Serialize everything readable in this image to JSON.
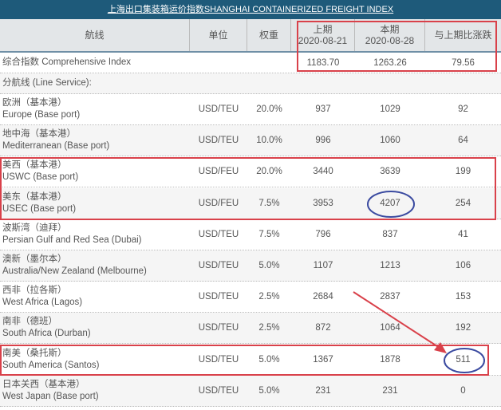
{
  "title": "上海出口集装箱运价指数SHANGHAI CONTAINERIZED FREIGHT INDEX",
  "headers": {
    "route": "航线",
    "unit": "单位",
    "weight": "权重",
    "prev_label": "上期",
    "prev_date": "2020-08-21",
    "curr_label": "本期",
    "curr_date": "2020-08-28",
    "change": "与上期比涨跌"
  },
  "comprehensive": {
    "label": "综合指数 Comprehensive Index",
    "prev": "1183.70",
    "curr": "1263.26",
    "change": "79.56"
  },
  "line_service": "分航线 (Line Service):",
  "rows": [
    {
      "cn": "欧洲（基本港）",
      "en": "Europe (Base port)",
      "unit": "USD/TEU",
      "weight": "20.0%",
      "prev": "937",
      "curr": "1029",
      "change": "92"
    },
    {
      "cn": "地中海（基本港）",
      "en": "Mediterranean (Base port)",
      "unit": "USD/TEU",
      "weight": "10.0%",
      "prev": "996",
      "curr": "1060",
      "change": "64"
    },
    {
      "cn": "美西（基本港）",
      "en": "USWC (Base port)",
      "unit": "USD/FEU",
      "weight": "20.0%",
      "prev": "3440",
      "curr": "3639",
      "change": "199"
    },
    {
      "cn": "美东（基本港）",
      "en": "USEC (Base port)",
      "unit": "USD/FEU",
      "weight": "7.5%",
      "prev": "3953",
      "curr": "4207",
      "change": "254"
    },
    {
      "cn": "波斯湾（迪拜）",
      "en": "Persian Gulf and Red Sea (Dubai)",
      "unit": "USD/TEU",
      "weight": "7.5%",
      "prev": "796",
      "curr": "837",
      "change": "41"
    },
    {
      "cn": "澳新（墨尔本）",
      "en": "Australia/New Zealand (Melbourne)",
      "unit": "USD/TEU",
      "weight": "5.0%",
      "prev": "1107",
      "curr": "1213",
      "change": "106"
    },
    {
      "cn": "西非（拉各斯）",
      "en": "West Africa (Lagos)",
      "unit": "USD/TEU",
      "weight": "2.5%",
      "prev": "2684",
      "curr": "2837",
      "change": "153"
    },
    {
      "cn": "南非（德班）",
      "en": "South Africa (Durban)",
      "unit": "USD/TEU",
      "weight": "2.5%",
      "prev": "872",
      "curr": "1064",
      "change": "192"
    },
    {
      "cn": "南美（桑托斯）",
      "en": "South America (Santos)",
      "unit": "USD/TEU",
      "weight": "5.0%",
      "prev": "1367",
      "curr": "1878",
      "change": "511"
    },
    {
      "cn": "日本关西（基本港）",
      "en": "West Japan (Base port)",
      "unit": "USD/TEU",
      "weight": "5.0%",
      "prev": "231",
      "curr": "231",
      "change": "0"
    }
  ],
  "colors": {
    "header_bg": "#1e5a7a",
    "highlight_box": "#d9414a",
    "ellipse": "#3a4aa0",
    "arrow": "#d9414a"
  }
}
